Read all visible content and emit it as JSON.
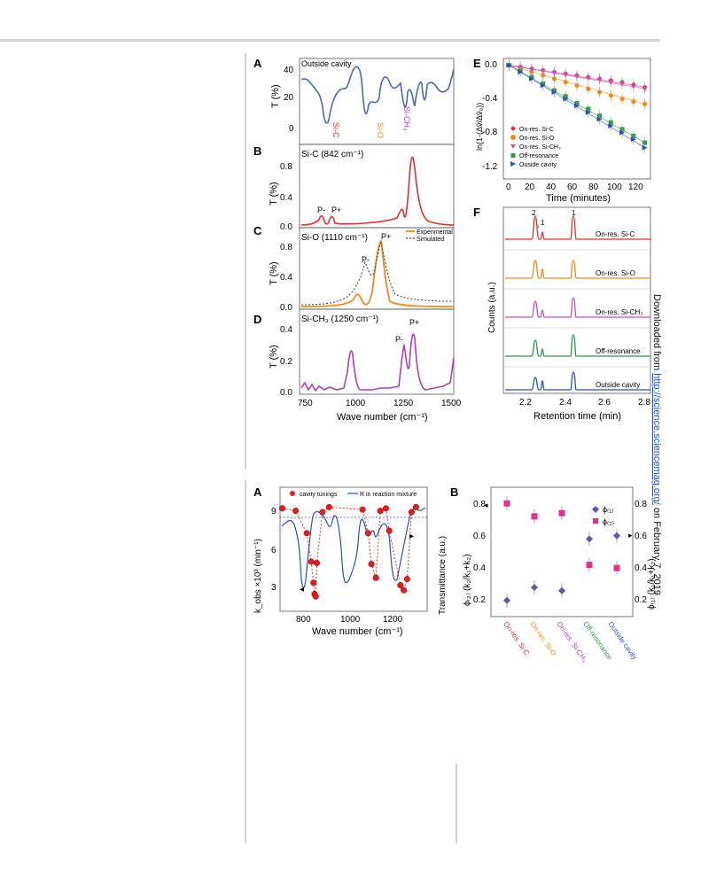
{
  "side_note": {
    "prefix": "Downloaded from ",
    "link": "http://science.sciencemag.org/",
    "suffix": " on February 7, 2019"
  },
  "figure1": {
    "A": {
      "letter": "A",
      "title": "Outside cavity",
      "ylabel": "T (%)",
      "yticks": [
        "40",
        "20",
        "0"
      ],
      "peak_labels": [
        {
          "text": "Si-C",
          "color": "#e03030"
        },
        {
          "text": "Si-O",
          "color": "#f08a1c"
        },
        {
          "text": "Si-CH₃",
          "color": "#b440b4"
        }
      ]
    },
    "B": {
      "letter": "B",
      "title": "Si-C (842 cm⁻¹)",
      "ylabel": "T (%)",
      "yticks": [
        "0.8",
        "0.4",
        "0.0"
      ],
      "labels": [
        "P-",
        "P+"
      ]
    },
    "C": {
      "letter": "C",
      "title": "Si-O (1110 cm⁻¹)",
      "ylabel": "T (%)",
      "yticks": [
        "0.8",
        "0.4",
        "0.0"
      ],
      "labels": [
        "P-",
        "P+"
      ],
      "legend": [
        "Experimental",
        "Simulated"
      ]
    },
    "D": {
      "letter": "D",
      "title": "Si-CH₃ (1250 cm⁻¹)",
      "ylabel": "T (%)",
      "yticks": [
        "0.4",
        "0.2",
        "0.0"
      ],
      "labels": [
        "P-",
        "P+"
      ]
    },
    "xticks": [
      "750",
      "1000",
      "1250",
      "1500"
    ],
    "xlabel": "Wave number (cm⁻¹)",
    "E": {
      "letter": "E",
      "ylabel": "ln(1-(Δṽ/Δṽ₀))",
      "xlabel": "Time (minutes)",
      "xticks": [
        "0",
        "20",
        "40",
        "60",
        "80",
        "100",
        "120"
      ],
      "yticks": [
        "0.0",
        "-0.4",
        "-0.8",
        "-1.2"
      ],
      "legend": [
        "On-res. Si-C",
        "On-res. Si-O",
        "On-res. Si-CH₃",
        "Off-resonance",
        "Ouside cavity"
      ]
    },
    "F": {
      "letter": "F",
      "ylabel": "Counts (a.u.)",
      "xlabel": "Retention time (min)",
      "xticks": [
        "2.2",
        "2.4",
        "2.6",
        "2.8"
      ],
      "peak_labels": [
        "2",
        "1",
        "1"
      ],
      "traces": [
        "On-res. Si-C",
        "On-res. Si-O",
        "On-res. Si-CH₃",
        "Off-resonance",
        "Outside cavity"
      ]
    }
  },
  "figure2": {
    "A": {
      "letter": "A",
      "legend": [
        "cavity tunings",
        "R in reaction mixture"
      ],
      "ylabel_left": "k_obs ×10³ (min⁻¹)",
      "ylabel_right": "Transmittance (a.u.)",
      "xlabel": "Wave number (cm⁻¹)",
      "xticks": [
        "800",
        "1000",
        "1200"
      ],
      "yticks": [
        "9",
        "6",
        "3"
      ]
    },
    "B": {
      "letter": "B",
      "ylabel_left": "ϕ₍₂₎ (k₂/k₁+k₂)",
      "ylabel_right": "ϕ₍₁₎ (k₁/k₁+k₂)",
      "legend": [
        "ϕ₍₁₎",
        "ϕ₍₂₎"
      ],
      "yticks": [
        "0.8",
        "0.6",
        "0.4",
        "0.2"
      ],
      "categories": [
        {
          "text": "On-res. Si-C",
          "color": "#e03030"
        },
        {
          "text": "On-res. Si-O",
          "color": "#f08a1c"
        },
        {
          "text": "On-res. Si-CH₃",
          "color": "#b440b4"
        },
        {
          "text": "Off-resonance",
          "color": "#2a9a4a"
        },
        {
          "text": "Outside cavity",
          "color": "#3050b0"
        }
      ]
    }
  },
  "chart_data": [
    {
      "type": "line",
      "panel": "E",
      "xlabel": "Time (minutes)",
      "ylabel": "ln(1-(Δṽ/Δṽ₀))",
      "xlim": [
        -5,
        125
      ],
      "ylim": [
        -1.35,
        0.08
      ],
      "x": [
        0,
        10,
        20,
        30,
        40,
        50,
        60,
        70,
        80,
        90,
        100,
        110,
        120
      ],
      "series": [
        {
          "name": "On-res. Si-C",
          "color": "#e03030",
          "values": [
            0,
            -0.02,
            -0.04,
            -0.06,
            -0.08,
            -0.1,
            -0.12,
            -0.14,
            -0.16,
            -0.18,
            -0.2,
            -0.23,
            -0.26
          ]
        },
        {
          "name": "On-res. Si-O",
          "color": "#f08a1c",
          "values": [
            0,
            -0.04,
            -0.08,
            -0.12,
            -0.16,
            -0.2,
            -0.24,
            -0.28,
            -0.32,
            -0.36,
            -0.4,
            -0.43,
            -0.46
          ]
        },
        {
          "name": "On-res. Si-CH₃",
          "color": "#c050c0",
          "values": [
            0,
            -0.02,
            -0.05,
            -0.07,
            -0.09,
            -0.11,
            -0.13,
            -0.15,
            -0.17,
            -0.2,
            -0.22,
            -0.25,
            -0.28
          ]
        },
        {
          "name": "Off-resonance",
          "color": "#2a9a4a",
          "values": [
            0,
            -0.07,
            -0.14,
            -0.22,
            -0.3,
            -0.37,
            -0.45,
            -0.52,
            -0.6,
            -0.68,
            -0.76,
            -0.84,
            -0.92
          ]
        },
        {
          "name": "Ouside cavity",
          "color": "#3050b0",
          "values": [
            0,
            -0.08,
            -0.16,
            -0.24,
            -0.32,
            -0.4,
            -0.48,
            -0.56,
            -0.64,
            -0.72,
            -0.8,
            -0.88,
            -0.98
          ]
        }
      ]
    },
    {
      "type": "scatter",
      "panel": "2B",
      "categories": [
        "On-res. Si-C",
        "On-res. Si-O",
        "On-res. Si-CH₃",
        "Off-resonance",
        "Outside cavity"
      ],
      "ylim": [
        0.1,
        0.9
      ],
      "series": [
        {
          "name": "ϕ₍₁₎",
          "color": "#6a50a8",
          "values": [
            0.2,
            0.28,
            0.26,
            0.58,
            0.6
          ]
        },
        {
          "name": "ϕ₍₂₎",
          "color": "#e0308a",
          "values": [
            0.8,
            0.72,
            0.74,
            0.42,
            0.4
          ]
        }
      ]
    },
    {
      "type": "scatter",
      "panel": "2A",
      "xlabel": "Wave number (cm⁻¹)",
      "ylabel": "k_obs ×10³ (min⁻¹)",
      "xlim": [
        690,
        1350
      ],
      "ylim": [
        0.5,
        10.5
      ],
      "series": [
        {
          "name": "cavity tunings",
          "color": "#e02020",
          "x": [
            700,
            760,
            810,
            830,
            840,
            845,
            850,
            855,
            880,
            910,
            1060,
            1085,
            1100,
            1120,
            1140,
            1165,
            1180,
            1230,
            1245,
            1260,
            1280,
            1300
          ],
          "values": [
            8.8,
            8.6,
            6.8,
            4.5,
            2.8,
            1.9,
            1.7,
            4.4,
            8.5,
            8.9,
            8.7,
            6.8,
            4.3,
            3.2,
            8.6,
            8.8,
            7.0,
            2.6,
            2.2,
            3.1,
            8.5,
            8.9
          ]
        }
      ]
    }
  ]
}
